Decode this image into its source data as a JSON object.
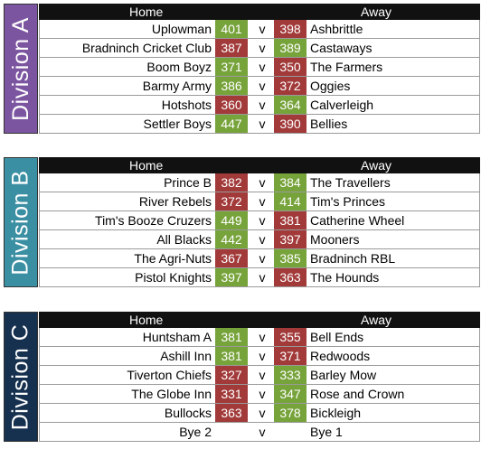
{
  "headers": {
    "home": "Home",
    "away": "Away",
    "vs": "v"
  },
  "colors": {
    "win": "#77a33b",
    "lose": "#a23a3a",
    "divA": "#7c55a1",
    "divB": "#3b8fa3",
    "divC": "#16304f"
  },
  "divisions": [
    {
      "name": "Division A",
      "color": "#7c55a1",
      "fixtures": [
        {
          "home": "Uplowman",
          "home_score": "401",
          "away_score": "398",
          "away": "Ashbrittle"
        },
        {
          "home": "Bradninch Cricket Club",
          "home_score": "387",
          "away_score": "389",
          "away": "Castaways"
        },
        {
          "home": "Boom Boyz",
          "home_score": "371",
          "away_score": "350",
          "away": "The Farmers"
        },
        {
          "home": "Barmy Army",
          "home_score": "386",
          "away_score": "372",
          "away": "Oggies"
        },
        {
          "home": "Hotshots",
          "home_score": "360",
          "away_score": "364",
          "away": "Calverleigh"
        },
        {
          "home": "Settler Boys",
          "home_score": "447",
          "away_score": "390",
          "away": "Bellies"
        }
      ]
    },
    {
      "name": "Division B",
      "color": "#3b8fa3",
      "fixtures": [
        {
          "home": "Prince B",
          "home_score": "382",
          "away_score": "384",
          "away": "The Travellers"
        },
        {
          "home": "River Rebels",
          "home_score": "372",
          "away_score": "414",
          "away": "Tim's Princes"
        },
        {
          "home": "Tim's Booze Cruzers",
          "home_score": "449",
          "away_score": "381",
          "away": "Catherine Wheel"
        },
        {
          "home": "All Blacks",
          "home_score": "442",
          "away_score": "397",
          "away": "Mooners"
        },
        {
          "home": "The Agri-Nuts",
          "home_score": "367",
          "away_score": "385",
          "away": "Bradninch RBL"
        },
        {
          "home": "Pistol Knights",
          "home_score": "397",
          "away_score": "363",
          "away": "The Hounds"
        }
      ]
    },
    {
      "name": "Division C",
      "color": "#16304f",
      "fixtures": [
        {
          "home": "Huntsham A",
          "home_score": "381",
          "away_score": "355",
          "away": "Bell Ends"
        },
        {
          "home": "Ashill Inn",
          "home_score": "381",
          "away_score": "371",
          "away": "Redwoods"
        },
        {
          "home": "Tiverton Chiefs",
          "home_score": "327",
          "away_score": "333",
          "away": "Barley Mow"
        },
        {
          "home": "The Globe Inn",
          "home_score": "331",
          "away_score": "347",
          "away": "Rose and Crown"
        },
        {
          "home": "Bullocks",
          "home_score": "363",
          "away_score": "378",
          "away": "Bickleigh"
        },
        {
          "home": "Bye 2",
          "home_score": "",
          "away_score": "",
          "away": "Bye 1"
        }
      ]
    }
  ]
}
